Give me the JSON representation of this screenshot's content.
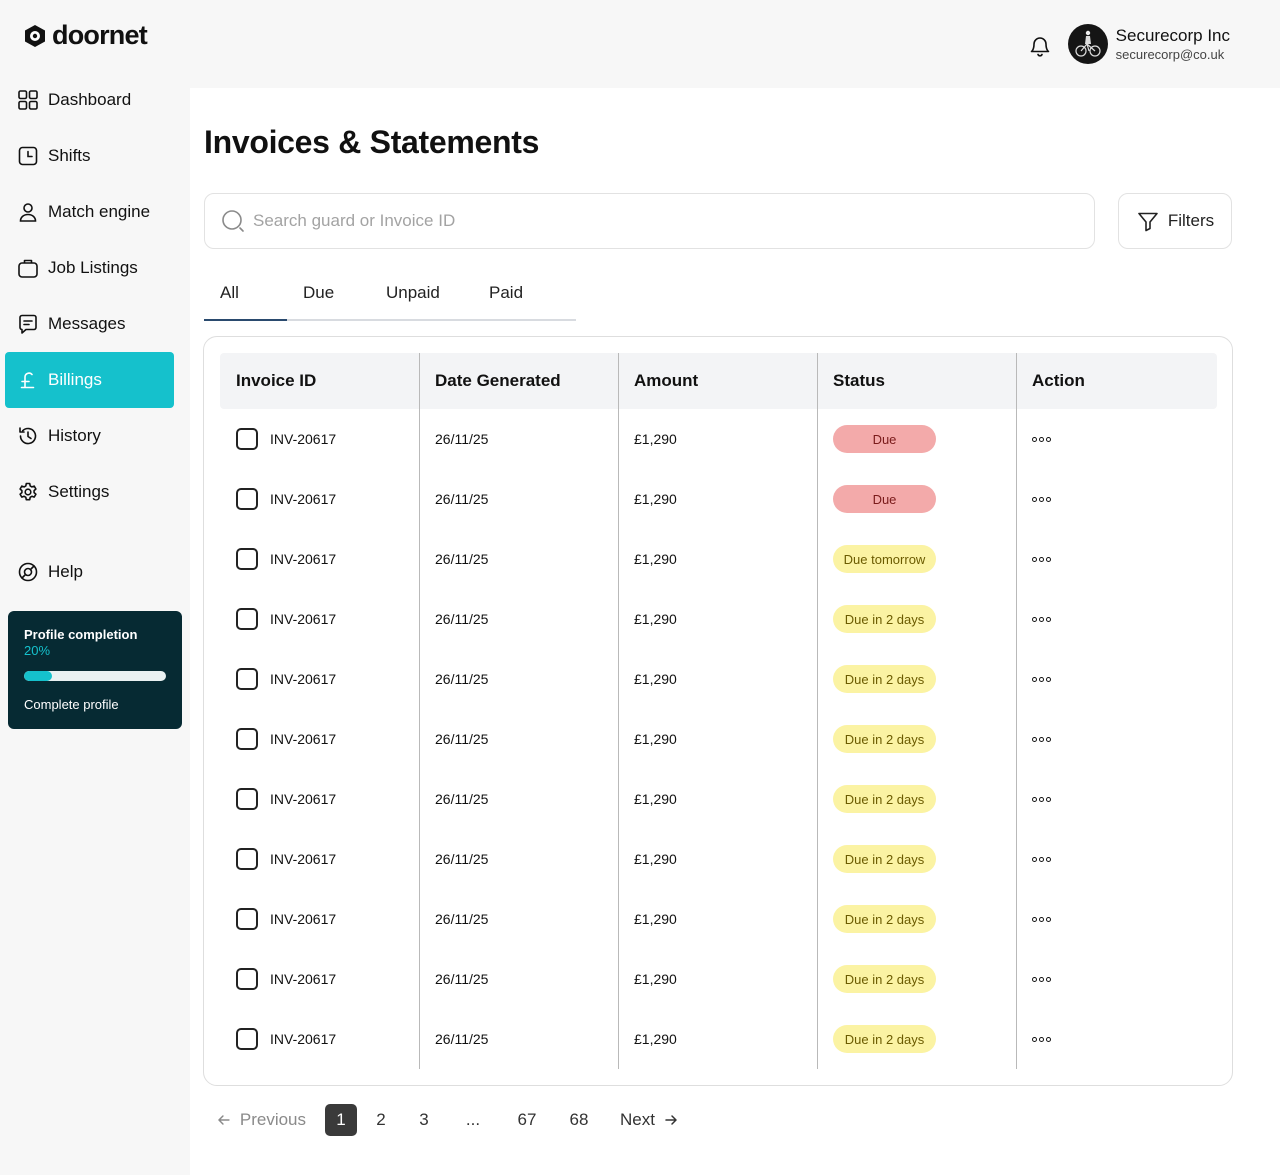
{
  "brand": {
    "name": "doornet"
  },
  "user": {
    "name": "Securecorp Inc",
    "email": "securecorp@co.uk"
  },
  "sidebar": {
    "items": [
      {
        "label": "Dashboard",
        "icon": "grid-icon"
      },
      {
        "label": "Shifts",
        "icon": "clock-square-icon"
      },
      {
        "label": "Match engine",
        "icon": "user-icon"
      },
      {
        "label": "Job Listings",
        "icon": "briefcase-icon"
      },
      {
        "label": "Messages",
        "icon": "message-icon"
      },
      {
        "label": "Billings",
        "icon": "pound-icon",
        "active": true
      },
      {
        "label": "History",
        "icon": "history-icon"
      },
      {
        "label": "Settings",
        "icon": "gear-icon"
      },
      {
        "label": "Help",
        "icon": "lifebuoy-icon"
      }
    ],
    "profile_card": {
      "title": "Profile completion",
      "percent_label": "20%",
      "progress": 0.2,
      "link": "Complete profile"
    }
  },
  "main": {
    "title": "Invoices & Statements",
    "search_placeholder": "Search guard or Invoice ID",
    "filters_label": "Filters",
    "tabs": [
      {
        "label": "All",
        "active": true
      },
      {
        "label": "Due"
      },
      {
        "label": "Unpaid"
      },
      {
        "label": "Paid"
      }
    ],
    "table": {
      "headers": [
        "Invoice ID",
        "Date Generated",
        "Amount",
        "Status",
        "Action"
      ],
      "rows": [
        {
          "id": "INV-20617",
          "date": "26/11/25",
          "amount": "£1,290",
          "status": "Due",
          "status_type": "red"
        },
        {
          "id": "INV-20617",
          "date": "26/11/25",
          "amount": "£1,290",
          "status": "Due",
          "status_type": "red"
        },
        {
          "id": "INV-20617",
          "date": "26/11/25",
          "amount": "£1,290",
          "status": "Due tomorrow",
          "status_type": "yellow"
        },
        {
          "id": "INV-20617",
          "date": "26/11/25",
          "amount": "£1,290",
          "status": "Due in 2 days",
          "status_type": "yellow"
        },
        {
          "id": "INV-20617",
          "date": "26/11/25",
          "amount": "£1,290",
          "status": "Due in 2 days",
          "status_type": "yellow"
        },
        {
          "id": "INV-20617",
          "date": "26/11/25",
          "amount": "£1,290",
          "status": "Due in 2 days",
          "status_type": "yellow"
        },
        {
          "id": "INV-20617",
          "date": "26/11/25",
          "amount": "£1,290",
          "status": "Due in 2 days",
          "status_type": "yellow"
        },
        {
          "id": "INV-20617",
          "date": "26/11/25",
          "amount": "£1,290",
          "status": "Due in 2 days",
          "status_type": "yellow"
        },
        {
          "id": "INV-20617",
          "date": "26/11/25",
          "amount": "£1,290",
          "status": "Due in 2 days",
          "status_type": "yellow"
        },
        {
          "id": "INV-20617",
          "date": "26/11/25",
          "amount": "£1,290",
          "status": "Due in 2 days",
          "status_type": "yellow"
        },
        {
          "id": "INV-20617",
          "date": "26/11/25",
          "amount": "£1,290",
          "status": "Due in 2 days",
          "status_type": "yellow"
        }
      ]
    },
    "pagination": {
      "previous": "Previous",
      "next": "Next",
      "pages": [
        "1",
        "2",
        "3",
        "...",
        "67",
        "68"
      ],
      "current": "1"
    }
  },
  "colors": {
    "accent": "#15c1cc",
    "dark_card": "#062a33",
    "due_red": "#f3aaaa",
    "due_yellow": "#fbf3a3"
  }
}
